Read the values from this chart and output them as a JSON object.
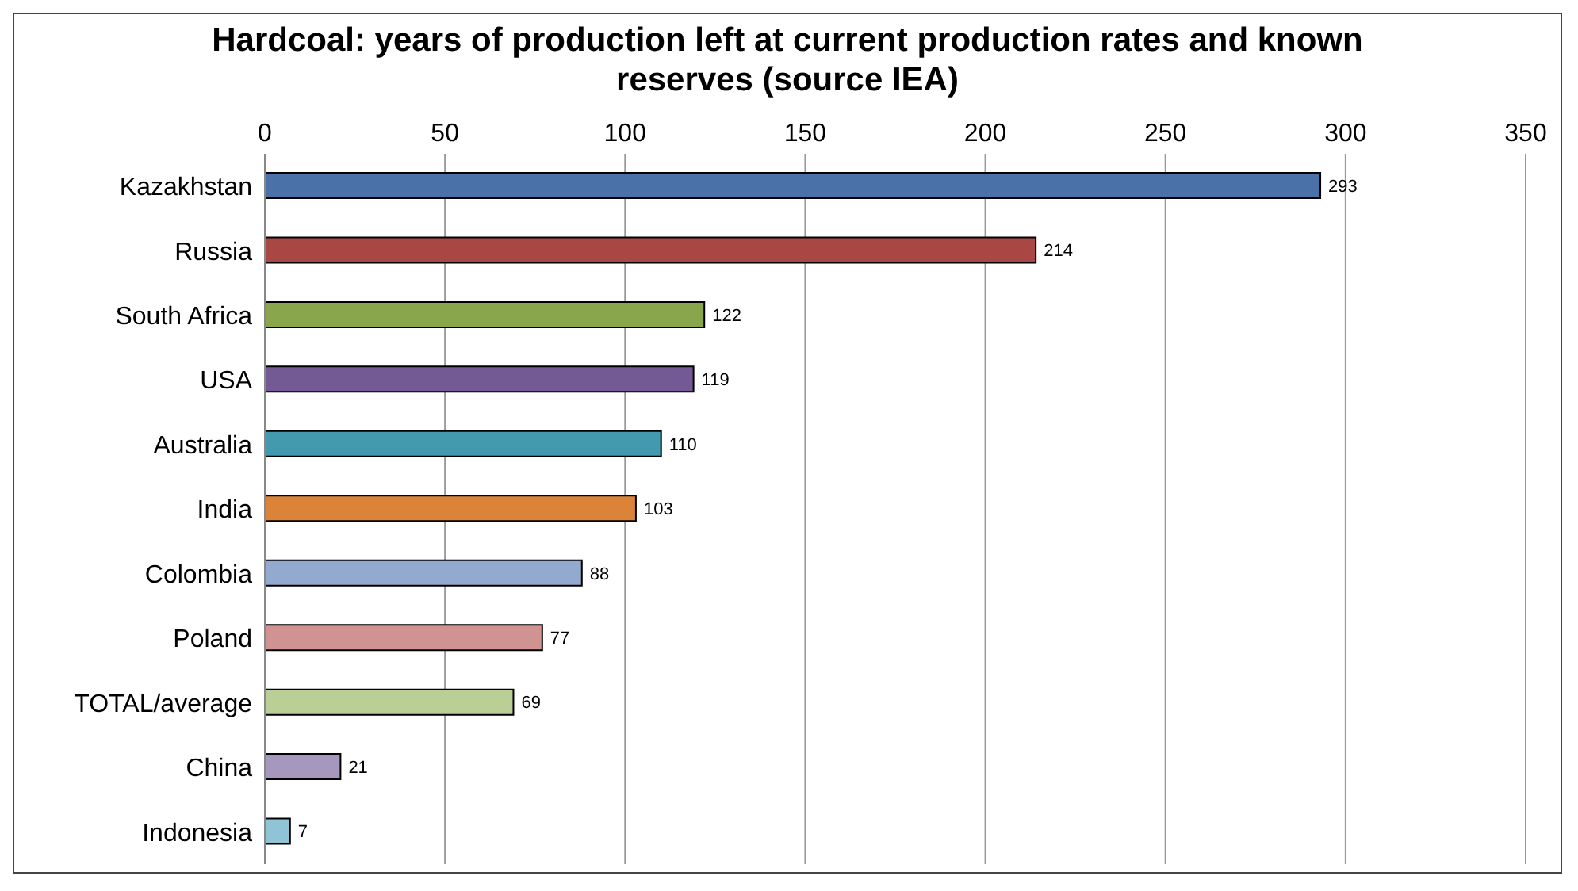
{
  "chart_data": {
    "type": "bar",
    "orientation": "horizontal",
    "title": "Hardcoal: years of production left at current production rates and known reserves (source IEA)",
    "categories": [
      "Kazakhstan",
      "Russia",
      "South Africa",
      "USA",
      "Australia",
      "India",
      "Colombia",
      "Poland",
      "TOTAL/average",
      "China",
      "Indonesia"
    ],
    "values": [
      293,
      214,
      122,
      119,
      110,
      103,
      88,
      77,
      69,
      21,
      7
    ],
    "colors": [
      "#4a72a8",
      "#a94744",
      "#8aa64c",
      "#735a94",
      "#4399ae",
      "#db8439",
      "#93a9cf",
      "#d09392",
      "#b9cf96",
      "#a697bf",
      "#8ec4d6"
    ],
    "xlim": [
      0,
      350
    ],
    "xticks": [
      0,
      50,
      100,
      150,
      200,
      250,
      300,
      350
    ],
    "grid": "x",
    "data_labels": true,
    "legend": false
  }
}
